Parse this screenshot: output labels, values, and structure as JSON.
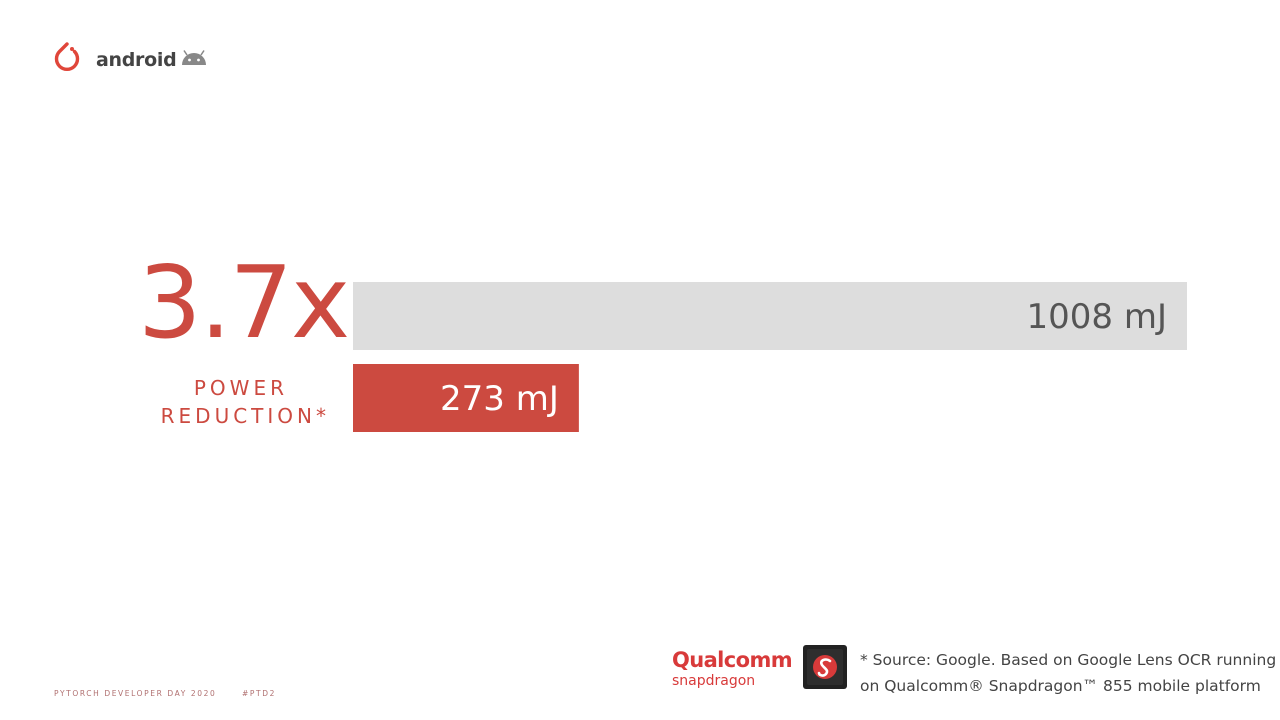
{
  "header": {
    "brand_logo": "pytorch-flame-icon",
    "platform_label": "android",
    "platform_icon": "android-bot-icon"
  },
  "headline": {
    "ratio": "3.7x",
    "caption_line1": "POWER",
    "caption_line2": "REDUCTION*"
  },
  "chart_data": {
    "type": "bar",
    "orientation": "horizontal",
    "categories": [
      "",
      ""
    ],
    "values": [
      1008,
      273
    ],
    "unit": "mJ",
    "labels": [
      "1008 mJ",
      "273 mJ"
    ],
    "colors": [
      "#dddddd",
      "#cc4a40"
    ],
    "label_colors": [
      "#555555",
      "#ffffff"
    ],
    "xlim": [
      0,
      1008
    ],
    "grid": false,
    "legend": "none",
    "title": "",
    "xlabel": "",
    "ylabel": ""
  },
  "sponsor": {
    "brand": "Qualcomm",
    "product": "snapdragon",
    "chip_icon": "snapdragon-chip-icon",
    "accent_color": "#d83a3a"
  },
  "source_note": {
    "line1": "* Source: Google. Based on Google Lens OCR running",
    "line2": "on Qualcomm® Snapdragon™ 855 mobile platform"
  },
  "footer": {
    "event": "PYTORCH DEVELOPER DAY 2020",
    "hashtag": "#PTD2"
  },
  "colors": {
    "accent": "#cc4a40",
    "text_dark": "#444444"
  }
}
